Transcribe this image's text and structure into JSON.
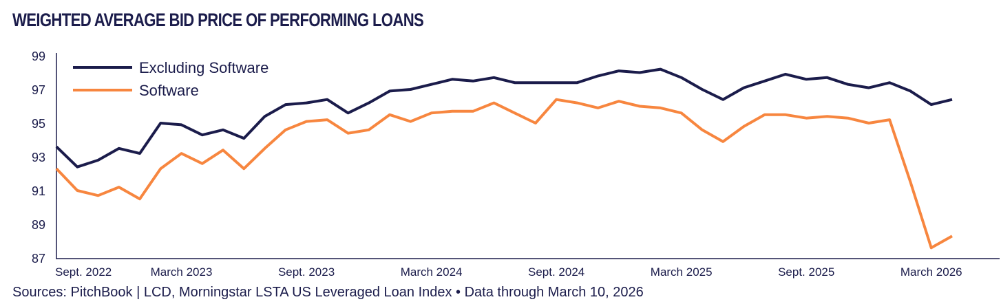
{
  "chart_data": {
    "type": "line",
    "title": "WEIGHTED AVERAGE BID PRICE OF PERFORMING LOANS",
    "xlabel": "",
    "ylabel": "",
    "ylim": [
      87,
      99
    ],
    "yticks": [
      "87",
      "89",
      "91",
      "93",
      "95",
      "97",
      "99"
    ],
    "x_tick_labels": [
      "Sept. 2022",
      "March 2023",
      "Sept. 2023",
      "March 2024",
      "Sept. 2024",
      "March 2025",
      "Sept. 2025",
      "March 2026"
    ],
    "x_tick_index": [
      0,
      6,
      12,
      18,
      24,
      30,
      36,
      42
    ],
    "x_points": 44,
    "legend_position": "top-left",
    "grid": false,
    "series": [
      {
        "name": "Excluding Software",
        "color": "#1b1c4b",
        "values": [
          93.6,
          92.4,
          92.8,
          93.5,
          93.2,
          95.0,
          94.9,
          94.3,
          94.6,
          94.1,
          95.4,
          96.1,
          96.2,
          96.4,
          95.6,
          96.2,
          96.9,
          97.0,
          97.3,
          97.6,
          97.5,
          97.7,
          97.4,
          97.4,
          97.4,
          97.4,
          97.8,
          98.1,
          98.0,
          98.2,
          97.7,
          97.0,
          96.4,
          97.1,
          97.5,
          97.9,
          97.6,
          97.7,
          97.3,
          97.1,
          97.4,
          96.9,
          96.1,
          96.4
        ]
      },
      {
        "name": "Software",
        "color": "#f7863f",
        "values": [
          92.3,
          91.0,
          90.7,
          91.2,
          90.5,
          92.3,
          93.2,
          92.6,
          93.4,
          92.3,
          93.5,
          94.6,
          95.1,
          95.2,
          94.4,
          94.6,
          95.5,
          95.1,
          95.6,
          95.7,
          95.7,
          96.2,
          95.6,
          95.0,
          96.4,
          96.2,
          95.9,
          96.3,
          96.0,
          95.9,
          95.6,
          94.6,
          93.9,
          94.8,
          95.5,
          95.5,
          95.3,
          95.4,
          95.3,
          95.0,
          95.2,
          91.5,
          87.6,
          88.3
        ]
      }
    ]
  },
  "source_text": "Sources: PitchBook | LCD, Morningstar LSTA US Leveraged Loan Index • Data through March 10, 2026"
}
